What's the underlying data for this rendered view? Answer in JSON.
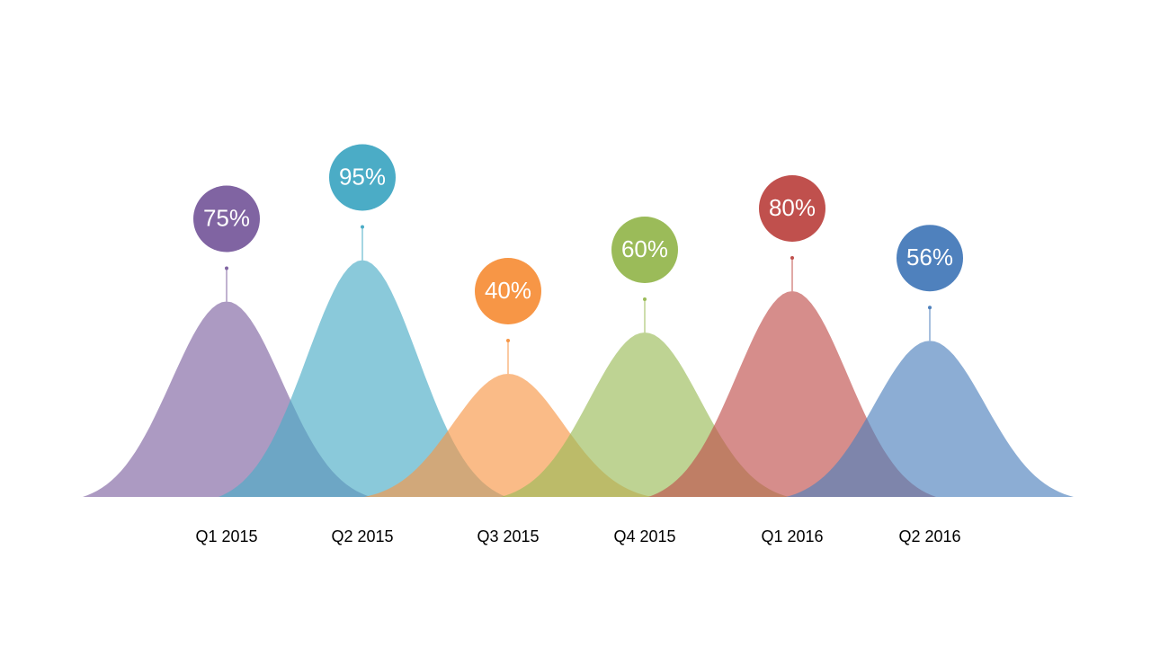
{
  "chart_data": {
    "type": "bell",
    "categories": [
      "Q1 2015",
      "Q2 2015",
      "Q3 2015",
      "Q4 2015",
      "Q1 2016",
      "Q2 2016"
    ],
    "values": [
      75,
      95,
      40,
      60,
      80,
      56
    ],
    "value_labels": [
      "75%",
      "95%",
      "40%",
      "60%",
      "80%",
      "56%"
    ],
    "colors": [
      "#8064a2",
      "#4bacc6",
      "#f79646",
      "#9bbb59",
      "#c0504d",
      "#4f81bd"
    ]
  }
}
